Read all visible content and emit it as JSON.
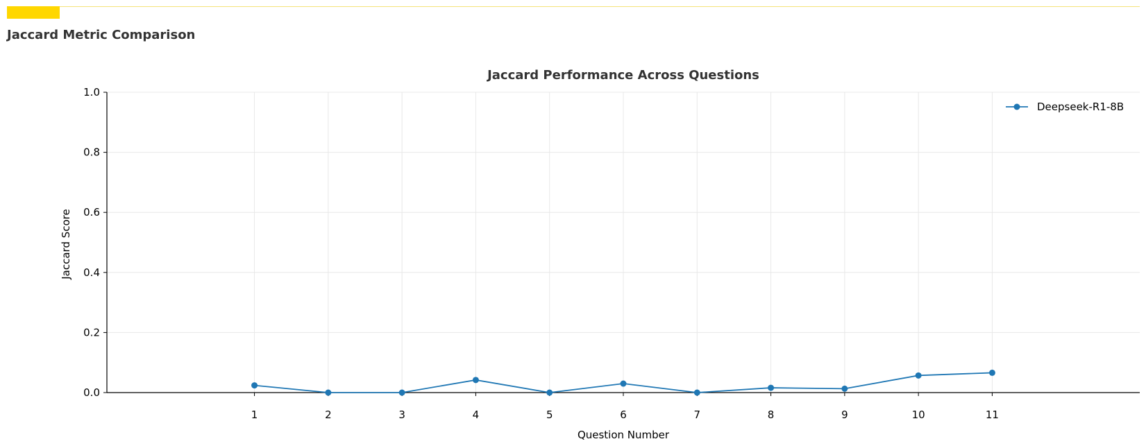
{
  "section": {
    "title": "Jaccard Metric Comparison",
    "accent_color": "#ffd700"
  },
  "chart_data": {
    "type": "line",
    "title": "Jaccard Performance Across Questions",
    "xlabel": "Question Number",
    "ylabel": "Jaccard Score",
    "x": [
      1,
      2,
      3,
      4,
      5,
      6,
      7,
      8,
      9,
      10,
      11
    ],
    "xlim": [
      -1,
      13
    ],
    "ylim": [
      0,
      1
    ],
    "yticks": [
      0.0,
      0.2,
      0.4,
      0.6,
      0.8,
      1.0
    ],
    "ytick_labels": [
      "0.0",
      "0.2",
      "0.4",
      "0.6",
      "0.8",
      "1.0"
    ],
    "grid": true,
    "legend_position": "top-right",
    "series": [
      {
        "name": "Deepseek-R1-8B",
        "color": "#1f77b4",
        "marker": "circle",
        "values": [
          0.024,
          0.0,
          0.0,
          0.042,
          0.0,
          0.03,
          0.0,
          0.016,
          0.013,
          0.057,
          0.066
        ]
      }
    ]
  }
}
